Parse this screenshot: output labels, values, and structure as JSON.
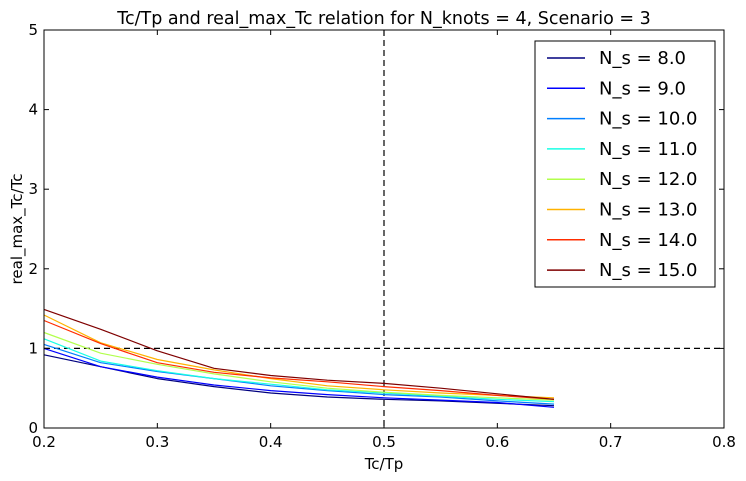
{
  "chart_data": {
    "type": "line",
    "title": "Tc/Tp and real_max_Tc relation for N_knots = 4, Scenario = 3",
    "xlabel": "Tc/Tp",
    "ylabel": "real_max_Tc/Tc",
    "xlim": [
      0.2,
      0.8
    ],
    "ylim": [
      0,
      5
    ],
    "xticks": [
      0.2,
      0.3,
      0.4,
      0.5,
      0.6,
      0.7,
      0.8
    ],
    "yticks": [
      0,
      1,
      2,
      3,
      4,
      5
    ],
    "xtick_labels": [
      "0.2",
      "0.3",
      "0.4",
      "0.5",
      "0.6",
      "0.7",
      "0.8"
    ],
    "ytick_labels": [
      "0",
      "1",
      "2",
      "3",
      "4",
      "5"
    ],
    "legend_position": "top-right",
    "reference_lines": [
      {
        "orientation": "vertical",
        "value": 0.5,
        "style": "dashed",
        "color": "#000000"
      },
      {
        "orientation": "horizontal",
        "value": 1,
        "style": "dashed",
        "color": "#000000"
      }
    ],
    "series": [
      {
        "name": "N_s = 8.0",
        "color": "#00007f",
        "x": [
          0.2,
          0.25,
          0.3,
          0.35,
          0.4,
          0.45,
          0.5,
          0.55,
          0.6,
          0.65
        ],
        "y": [
          0.92,
          0.77,
          0.62,
          0.52,
          0.44,
          0.39,
          0.36,
          0.34,
          0.31,
          0.28
        ]
      },
      {
        "name": "N_s = 9.0",
        "color": "#0000ff",
        "x": [
          0.2,
          0.25,
          0.3,
          0.35,
          0.4,
          0.45,
          0.5,
          0.55,
          0.6,
          0.65
        ],
        "y": [
          1.0,
          0.77,
          0.64,
          0.54,
          0.47,
          0.42,
          0.38,
          0.35,
          0.32,
          0.26
        ]
      },
      {
        "name": "N_s = 10.0",
        "color": "#007fff",
        "x": [
          0.2,
          0.25,
          0.3,
          0.35,
          0.4,
          0.45,
          0.5,
          0.55,
          0.6,
          0.65
        ],
        "y": [
          1.05,
          0.82,
          0.71,
          0.62,
          0.53,
          0.47,
          0.42,
          0.39,
          0.34,
          0.3
        ]
      },
      {
        "name": "N_s = 11.0",
        "color": "#19ffe5",
        "x": [
          0.2,
          0.25,
          0.3,
          0.35,
          0.4,
          0.45,
          0.5,
          0.55,
          0.6,
          0.65
        ],
        "y": [
          1.12,
          0.84,
          0.72,
          0.62,
          0.55,
          0.48,
          0.44,
          0.4,
          0.36,
          0.33
        ]
      },
      {
        "name": "N_s = 12.0",
        "color": "#b2ff4c",
        "x": [
          0.2,
          0.25,
          0.3,
          0.35,
          0.4,
          0.45,
          0.5,
          0.55,
          0.6,
          0.65
        ],
        "y": [
          1.2,
          0.94,
          0.8,
          0.68,
          0.58,
          0.5,
          0.45,
          0.41,
          0.38,
          0.35
        ]
      },
      {
        "name": "N_s = 13.0",
        "color": "#ffb200",
        "x": [
          0.2,
          0.25,
          0.3,
          0.35,
          0.4,
          0.45,
          0.5,
          0.55,
          0.6,
          0.65
        ],
        "y": [
          1.42,
          1.07,
          0.86,
          0.73,
          0.62,
          0.53,
          0.48,
          0.44,
          0.41,
          0.38
        ]
      },
      {
        "name": "N_s = 14.0",
        "color": "#ff2d00",
        "x": [
          0.2,
          0.25,
          0.3,
          0.35,
          0.4,
          0.45,
          0.5,
          0.55,
          0.6,
          0.65
        ],
        "y": [
          1.35,
          1.06,
          0.82,
          0.7,
          0.63,
          0.58,
          0.52,
          0.47,
          0.41,
          0.36
        ]
      },
      {
        "name": "N_s = 15.0",
        "color": "#7f0000",
        "x": [
          0.2,
          0.25,
          0.3,
          0.35,
          0.4,
          0.45,
          0.5,
          0.55,
          0.6,
          0.65
        ],
        "y": [
          1.49,
          1.24,
          0.97,
          0.75,
          0.66,
          0.6,
          0.56,
          0.5,
          0.43,
          0.36
        ]
      }
    ]
  }
}
